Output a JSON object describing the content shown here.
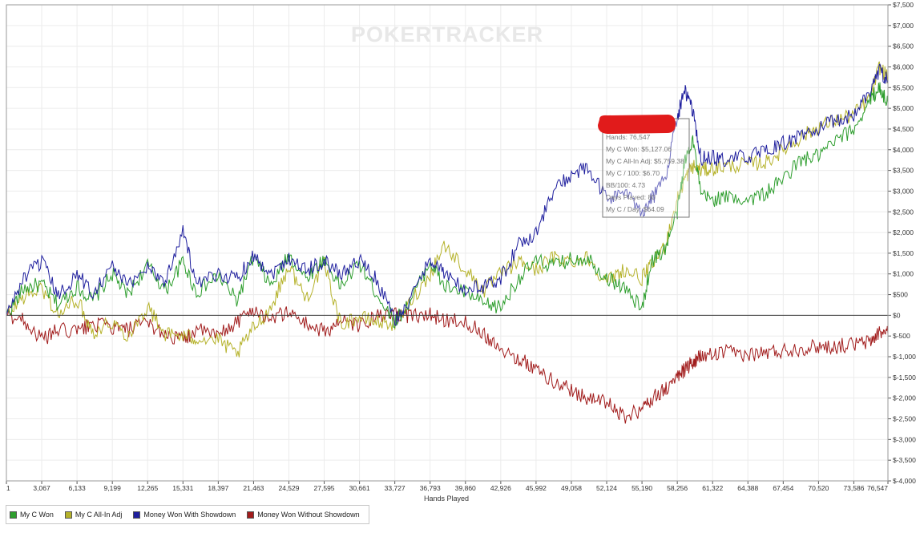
{
  "branding": {
    "logo_text": "POKERTRACKER"
  },
  "chart_data": {
    "type": "line",
    "xlabel": "Hands Played",
    "ylabel": "",
    "xlim": [
      1,
      76547
    ],
    "ylim": [
      -4000,
      7500
    ],
    "x_ticks": [
      "1",
      "3,067",
      "6,133",
      "9,199",
      "12,265",
      "15,331",
      "18,397",
      "21,463",
      "24,529",
      "27,595",
      "30,661",
      "33,727",
      "36,793",
      "39,860",
      "42,926",
      "45,992",
      "49,058",
      "52,124",
      "55,190",
      "58,256",
      "61,322",
      "64,388",
      "67,454",
      "70,520",
      "73,586",
      "76,547"
    ],
    "x_tick_values": [
      1,
      3067,
      6133,
      9199,
      12265,
      15331,
      18397,
      21463,
      24529,
      27595,
      30661,
      33727,
      36793,
      39860,
      42926,
      45992,
      49058,
      52124,
      55190,
      58256,
      61322,
      64388,
      67454,
      70520,
      73586,
      76547
    ],
    "y_ticks": [
      "$7,500",
      "$7,000",
      "$6,500",
      "$6,000",
      "$5,500",
      "$5,000",
      "$4,500",
      "$4,000",
      "$3,500",
      "$3,000",
      "$2,500",
      "$2,000",
      "$1,500",
      "$1,000",
      "$500",
      "$0",
      "$-500",
      "$-1,000",
      "$-1,500",
      "$-2,000",
      "$-2,500",
      "$-3,000",
      "$-3,500",
      "$-4,000"
    ],
    "y_tick_values": [
      7500,
      7000,
      6500,
      6000,
      5500,
      5000,
      4500,
      4000,
      3500,
      3000,
      2500,
      2000,
      1500,
      1000,
      500,
      0,
      -500,
      -1000,
      -1500,
      -2000,
      -2500,
      -3000,
      -3500,
      -4000
    ],
    "grid": true,
    "legend_position": "bottom-left",
    "series": [
      {
        "name": "My C Won",
        "color": "#2e9e2e",
        "x": [
          1,
          1500,
          3067,
          4500,
          6133,
          7500,
          9199,
          10500,
          12265,
          13800,
          15331,
          16500,
          18397,
          20000,
          21463,
          23000,
          24529,
          26000,
          27595,
          29000,
          30661,
          32000,
          33727,
          35000,
          36793,
          38000,
          39860,
          41500,
          42926,
          44500,
          45992,
          47500,
          49058,
          50500,
          52124,
          53500,
          55190,
          56000,
          57200,
          58256,
          58900,
          59600,
          60300,
          61322,
          62500,
          64388,
          66000,
          67454,
          69000,
          70520,
          72000,
          73586,
          75000,
          75800,
          76547
        ],
        "y": [
          0,
          650,
          750,
          250,
          700,
          350,
          1000,
          500,
          1200,
          600,
          1300,
          550,
          950,
          350,
          1400,
          700,
          1450,
          900,
          1350,
          700,
          1250,
          600,
          -150,
          300,
          1300,
          700,
          550,
          250,
          200,
          900,
          1300,
          1200,
          1350,
          1400,
          900,
          700,
          150,
          1300,
          1600,
          2500,
          3700,
          4300,
          2900,
          2800,
          2850,
          2800,
          2950,
          3300,
          3750,
          3850,
          4200,
          4500,
          5200,
          5500,
          5127
        ]
      },
      {
        "name": "My C All-In Adj",
        "color": "#b5b22a",
        "x": [
          1,
          1500,
          3067,
          4500,
          6133,
          7500,
          9199,
          10500,
          12265,
          13800,
          15331,
          16500,
          18397,
          20000,
          21463,
          23000,
          24529,
          26000,
          27595,
          29000,
          30661,
          32000,
          33727,
          35000,
          36793,
          38000,
          39860,
          41500,
          42926,
          44500,
          45992,
          47500,
          49058,
          50500,
          52124,
          53500,
          55190,
          56000,
          57200,
          58256,
          58900,
          59600,
          60300,
          61322,
          62500,
          64388,
          66000,
          67454,
          69000,
          70520,
          72000,
          73586,
          75000,
          75800,
          76547
        ],
        "y": [
          0,
          450,
          650,
          0,
          400,
          -400,
          -150,
          -500,
          200,
          -450,
          -500,
          -550,
          -600,
          -950,
          -300,
          200,
          1200,
          400,
          1250,
          -200,
          -50,
          -150,
          -200,
          300,
          1000,
          1700,
          1100,
          600,
          1000,
          1300,
          1100,
          1400,
          1300,
          1400,
          800,
          1100,
          900,
          1200,
          1700,
          2800,
          3300,
          3600,
          3500,
          3550,
          3600,
          3650,
          3700,
          4000,
          4300,
          4550,
          4700,
          4850,
          5250,
          6000,
          5760
        ]
      },
      {
        "name": "Money Won With Showdown",
        "color": "#1f1f9e",
        "x": [
          1,
          1500,
          3067,
          4500,
          6133,
          7500,
          9199,
          10500,
          12265,
          13800,
          15331,
          16500,
          18397,
          20000,
          21463,
          23000,
          24529,
          26000,
          27595,
          29000,
          30661,
          32000,
          33727,
          35000,
          36793,
          38000,
          39860,
          41500,
          42926,
          44500,
          45992,
          47500,
          49058,
          50500,
          52124,
          53500,
          55190,
          56000,
          57200,
          58256,
          58900,
          59600,
          60300,
          61322,
          62500,
          64388,
          66000,
          67454,
          69000,
          70520,
          72000,
          73586,
          75000,
          75800,
          76547
        ],
        "y": [
          0,
          900,
          1300,
          450,
          1000,
          550,
          1200,
          700,
          1200,
          800,
          2100,
          700,
          1000,
          900,
          1450,
          1000,
          1400,
          1100,
          1300,
          1000,
          1350,
          900,
          -100,
          300,
          1400,
          1000,
          600,
          700,
          900,
          1700,
          2000,
          3000,
          3400,
          3550,
          2800,
          3000,
          2500,
          2800,
          3300,
          4800,
          5450,
          4900,
          3800,
          3800,
          3750,
          3850,
          3950,
          4150,
          4350,
          4500,
          4700,
          4850,
          5400,
          5950,
          5650
        ]
      },
      {
        "name": "Money Won Without Showdown",
        "color": "#a11c1c",
        "x": [
          1,
          1500,
          3067,
          4500,
          6133,
          7500,
          9199,
          10500,
          12265,
          13800,
          15331,
          16500,
          18397,
          20000,
          21463,
          23000,
          24529,
          26000,
          27595,
          29000,
          30661,
          32000,
          33727,
          35000,
          36793,
          38000,
          39860,
          41500,
          42926,
          44500,
          45992,
          47500,
          49058,
          50500,
          52124,
          53500,
          55190,
          56000,
          57200,
          58256,
          58900,
          59600,
          60300,
          61322,
          62500,
          64388,
          66000,
          67454,
          69000,
          70520,
          72000,
          73586,
          75000,
          75800,
          76547
        ],
        "y": [
          0,
          -100,
          -600,
          -350,
          -400,
          -200,
          -300,
          -350,
          -200,
          -450,
          -600,
          -350,
          -500,
          -150,
          150,
          -100,
          100,
          -200,
          -400,
          -150,
          -250,
          -50,
          0,
          0,
          0,
          -100,
          -150,
          -450,
          -800,
          -1050,
          -1300,
          -1600,
          -1800,
          -2000,
          -2100,
          -2450,
          -2300,
          -2000,
          -1800,
          -1500,
          -1300,
          -1150,
          -1000,
          -950,
          -900,
          -950,
          -900,
          -850,
          -800,
          -750,
          -750,
          -700,
          -650,
          -400,
          -450
        ]
      }
    ],
    "tooltip": {
      "lines": [
        "Hands: 76,547",
        "My C Won: $5,127.06",
        "My C All-In Adj: $5,759.38",
        "My C / 100: $6.70",
        "BB/100: 4.73",
        "Days Played: 80",
        "My C / Day: $64.09"
      ]
    }
  }
}
